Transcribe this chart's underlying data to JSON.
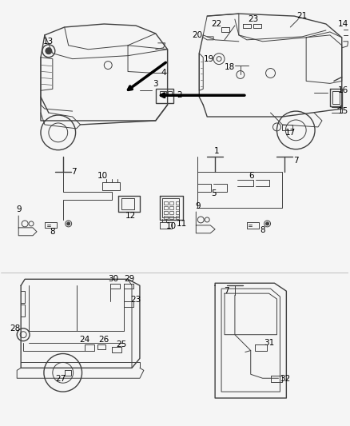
{
  "bg_color": "#f5f5f5",
  "line_color": "#404040",
  "label_color": "#000000",
  "fig_width": 4.38,
  "fig_height": 5.33,
  "dpi": 100,
  "font_size": 7.5
}
